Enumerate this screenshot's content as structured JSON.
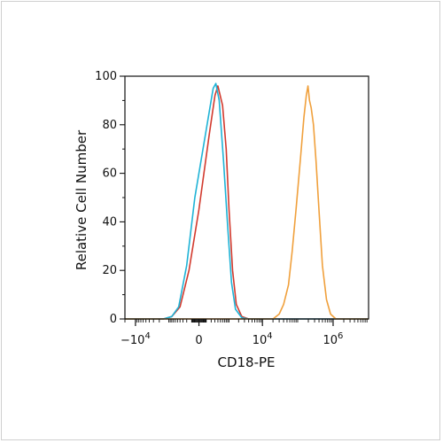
{
  "chart_data": {
    "type": "line",
    "xlabel": "CD18-PE",
    "ylabel": "Relative Cell Number",
    "x_scale": "biexponential",
    "ylim": [
      0,
      100
    ],
    "y_ticks": [
      0,
      20,
      40,
      60,
      80,
      100
    ],
    "y_tick_labels": [
      "0",
      "20",
      "40",
      "60",
      "80",
      "100"
    ],
    "x_ticks": [
      -10000,
      0,
      10000,
      1000000
    ],
    "x_tick_labels": [
      {
        "base": "−10",
        "exp": "4"
      },
      {
        "base": "0",
        "exp": ""
      },
      {
        "base": "10",
        "exp": "4"
      },
      {
        "base": "10",
        "exp": "6"
      }
    ],
    "grid": false,
    "series": [
      {
        "color": "#d23a2e",
        "points": [
          [
            -20000,
            0
          ],
          [
            -5000,
            0
          ],
          [
            -1500,
            0
          ],
          [
            -800,
            1
          ],
          [
            -400,
            5
          ],
          [
            -150,
            20
          ],
          [
            0,
            45
          ],
          [
            150,
            75
          ],
          [
            300,
            92
          ],
          [
            400,
            96
          ],
          [
            600,
            88
          ],
          [
            800,
            70
          ],
          [
            1000,
            45
          ],
          [
            1300,
            20
          ],
          [
            1700,
            6
          ],
          [
            2500,
            1
          ],
          [
            4000,
            0
          ],
          [
            10000000,
            0
          ]
        ]
      },
      {
        "color": "#1fb3d6",
        "points": [
          [
            -20000,
            0
          ],
          [
            -5000,
            0
          ],
          [
            -1500,
            0
          ],
          [
            -800,
            1
          ],
          [
            -450,
            5
          ],
          [
            -200,
            22
          ],
          [
            -50,
            50
          ],
          [
            100,
            78
          ],
          [
            250,
            95
          ],
          [
            330,
            97
          ],
          [
            450,
            90
          ],
          [
            650,
            65
          ],
          [
            900,
            38
          ],
          [
            1200,
            15
          ],
          [
            1600,
            4
          ],
          [
            2500,
            0.5
          ],
          [
            4000,
            0
          ],
          [
            10000000,
            0
          ]
        ]
      },
      {
        "color": "#f0a03c",
        "points": [
          [
            -20000,
            0
          ],
          [
            10000,
            0
          ],
          [
            20000,
            0
          ],
          [
            30000,
            2
          ],
          [
            40000,
            6
          ],
          [
            55000,
            14
          ],
          [
            70000,
            28
          ],
          [
            90000,
            45
          ],
          [
            120000,
            66
          ],
          [
            150000,
            83
          ],
          [
            175000,
            92
          ],
          [
            195000,
            96
          ],
          [
            215000,
            90
          ],
          [
            240000,
            87
          ],
          [
            280000,
            80
          ],
          [
            330000,
            65
          ],
          [
            400000,
            45
          ],
          [
            500000,
            22
          ],
          [
            650000,
            8
          ],
          [
            850000,
            2
          ],
          [
            1200000,
            0
          ],
          [
            2000000,
            0
          ],
          [
            10000000,
            0
          ]
        ]
      }
    ]
  }
}
